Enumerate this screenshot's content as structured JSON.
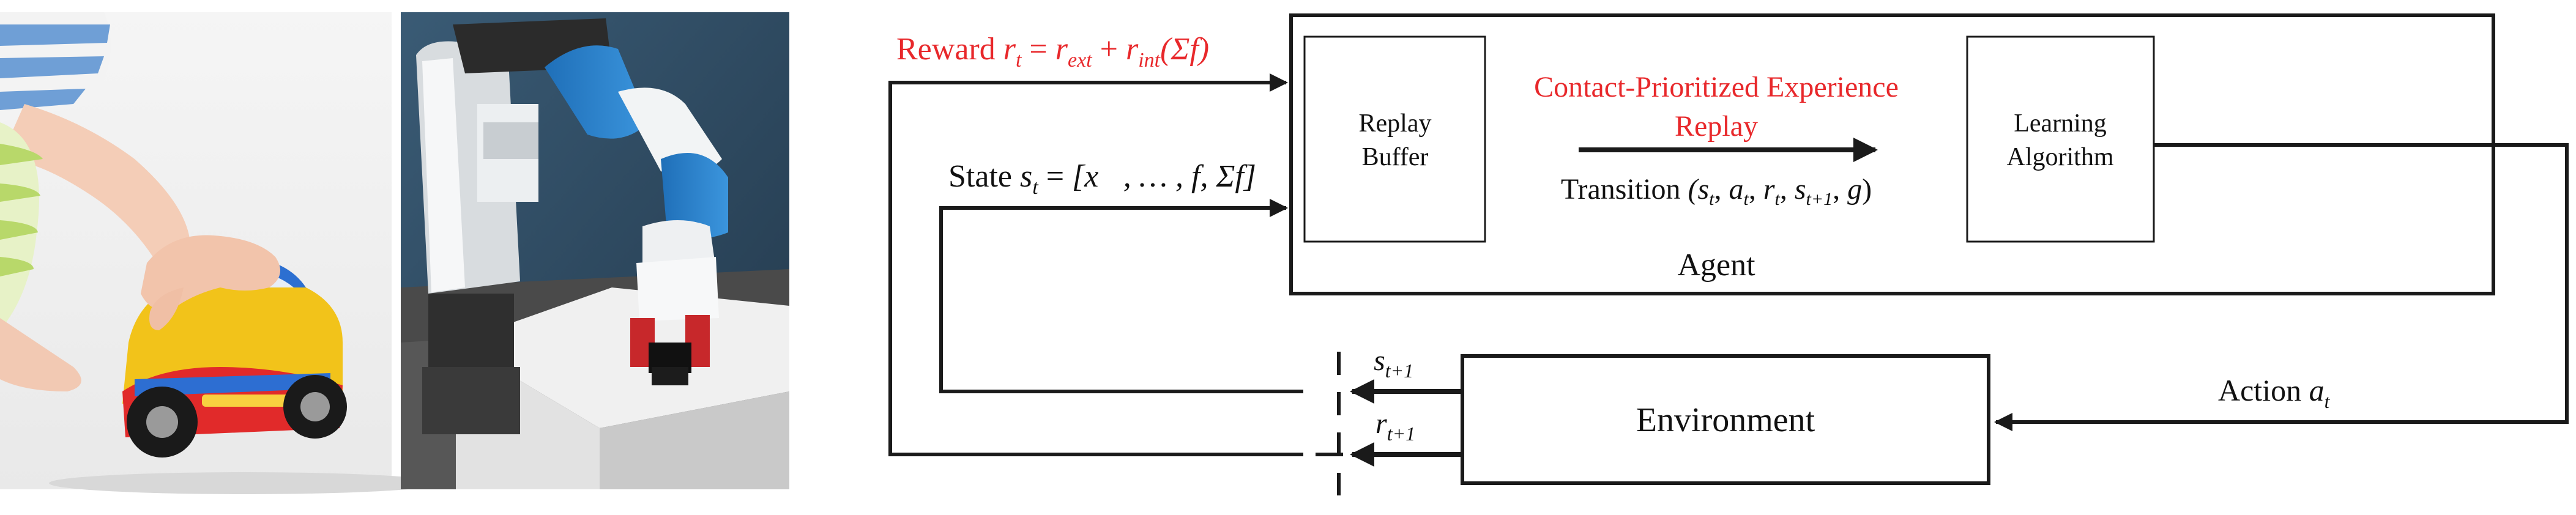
{
  "photos": {
    "child_toy_car": {
      "icon": "child-hand-on-toy-car-photo"
    },
    "robot_arm": {
      "icon": "robot-arm-gripping-block-photo"
    }
  },
  "reward": {
    "label": "Reward",
    "math": {
      "lhs": "r",
      "lhs_sub": "t",
      "eq": " = ",
      "ext": "r",
      "ext_sub": "ext",
      "plus": " + ",
      "int": "r",
      "int_sub": "int",
      "arg": "(Σf)"
    }
  },
  "state": {
    "label": "State",
    "math": {
      "s": "s",
      "s_sub": "t",
      "eq": " = ",
      "body": "[x⃗, … , f, Σf]"
    }
  },
  "agent": {
    "label": "Agent",
    "replay_buffer": [
      "Replay",
      "Buffer"
    ],
    "learning_algorithm": [
      "Learning",
      "Algorithm"
    ],
    "cper": [
      "Contact-Prioritized Experience",
      "Replay"
    ],
    "transition": {
      "label": "Transition ",
      "tuple": "(s",
      "a": "a",
      "r": "r",
      "s1": "s",
      "g": "g"
    }
  },
  "environment": {
    "label": "Environment"
  },
  "action": {
    "label": "Action ",
    "var": "a",
    "sub": "t"
  },
  "next_state": {
    "var": "s",
    "sub": "t+1"
  },
  "next_reward": {
    "var": "r",
    "sub": "t+1"
  },
  "colors": {
    "accent_red": "#e8282b",
    "line": "#1a1a1a"
  }
}
